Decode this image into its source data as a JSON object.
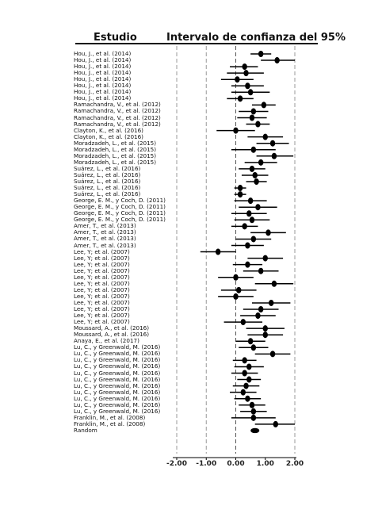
{
  "header": {
    "study": "Estudio",
    "ci": "Intervalo de confianza del 95%"
  },
  "chart_data": {
    "type": "forest",
    "xlim": [
      -2.0,
      2.0
    ],
    "xticks": [
      "-2.00",
      "-1.00",
      "0.00",
      "1.00",
      "2.00"
    ],
    "reference_lines": [
      -2.0,
      -1.0,
      0.0,
      2.0
    ],
    "studies": [
      {
        "label": "Hou, J., et al. (2014)",
        "est": 0.85,
        "lo": 0.5,
        "hi": 1.2
      },
      {
        "label": "Hou, J., et al. (2014)",
        "est": 1.4,
        "lo": 0.85,
        "hi": 2.0
      },
      {
        "label": "Hou, J., et al. (2014)",
        "est": 0.3,
        "lo": -0.2,
        "hi": 0.75
      },
      {
        "label": "Hou, J., et al. (2014)",
        "est": 0.35,
        "lo": -0.3,
        "hi": 0.95
      },
      {
        "label": "Hou, J., et al. (2014)",
        "est": 0.05,
        "lo": -0.5,
        "hi": 0.6
      },
      {
        "label": "Hou, J., et al. (2014)",
        "est": 0.4,
        "lo": -0.15,
        "hi": 0.95
      },
      {
        "label": "Hou, J., et al. (2014)",
        "est": 0.5,
        "lo": -0.15,
        "hi": 1.15
      },
      {
        "label": "Hou, J., et al. (2014)",
        "est": 0.15,
        "lo": -0.3,
        "hi": 0.6
      },
      {
        "label": "Ramachandra, V., et al. (2012)",
        "est": 0.95,
        "lo": 0.55,
        "hi": 1.35
      },
      {
        "label": "Ramachandra, V., et al. (2012)",
        "est": 0.6,
        "lo": 0.1,
        "hi": 1.1
      },
      {
        "label": "Ramachandra, V., et al. (2012)",
        "est": 0.55,
        "lo": 0.05,
        "hi": 1.05
      },
      {
        "label": "Ramachandra, V., et al. (2012)",
        "est": 0.75,
        "lo": 0.35,
        "hi": 1.15
      },
      {
        "label": "Clayton, K., et al. (2016)",
        "est": 0.0,
        "lo": -0.65,
        "hi": 0.65
      },
      {
        "label": "Clayton, K., et al. (2016)",
        "est": 1.0,
        "lo": 0.4,
        "hi": 1.6
      },
      {
        "label": "Moradzadeh, L., et al. (2015)",
        "est": 1.25,
        "lo": 0.7,
        "hi": 1.8
      },
      {
        "label": "Moradzadeh, L., et al. (2015)",
        "est": 0.6,
        "lo": -0.15,
        "hi": 1.35
      },
      {
        "label": "Moradzadeh, L., et al. (2015)",
        "est": 1.3,
        "lo": 0.7,
        "hi": 1.95
      },
      {
        "label": "Moradzadeh, L., et al. (2015)",
        "est": 0.85,
        "lo": 0.3,
        "hi": 1.4
      },
      {
        "label": "Suárez, L., et al. (2016)",
        "est": 0.55,
        "lo": 0.1,
        "hi": 1.0
      },
      {
        "label": "Suárez, L., et al. (2016)",
        "est": 0.65,
        "lo": 0.2,
        "hi": 1.1
      },
      {
        "label": "Suárez, L., et al. (2016)",
        "est": 0.7,
        "lo": 0.35,
        "hi": 1.05
      },
      {
        "label": "Suárez, L., et al. (2016)",
        "est": 0.15,
        "lo": -0.05,
        "hi": 0.35
      },
      {
        "label": "Suárez, L., et al. (2016)",
        "est": 0.15,
        "lo": -0.05,
        "hi": 0.35
      },
      {
        "label": "George, E. M., y Coch, D. (2011)",
        "est": 0.5,
        "lo": -0.05,
        "hi": 1.05
      },
      {
        "label": "George, E. M., y Coch, D. (2011)",
        "est": 0.75,
        "lo": 0.1,
        "hi": 1.4
      },
      {
        "label": "George, E. M., y Coch, D. (2011)",
        "est": 0.45,
        "lo": -0.15,
        "hi": 1.05
      },
      {
        "label": "George, E. M., y Coch, D. (2011)",
        "est": 0.55,
        "lo": -0.05,
        "hi": 1.15
      },
      {
        "label": "Amer, T., et al. (2013)",
        "est": 0.3,
        "lo": -0.15,
        "hi": 0.75
      },
      {
        "label": "Amer, T., et al. (2013)",
        "est": 1.1,
        "lo": 0.5,
        "hi": 1.7
      },
      {
        "label": "Amer, T., et al. (2013)",
        "est": 0.6,
        "lo": 0.0,
        "hi": 1.2
      },
      {
        "label": "Amer, T., et al. (2013)",
        "est": 0.4,
        "lo": -0.15,
        "hi": 0.95
      },
      {
        "label": "Lee, Y; et al.  (2007)",
        "est": -0.6,
        "lo": -1.2,
        "hi": 0.0
      },
      {
        "label": "Lee, Y; et al.  (2007)",
        "est": 1.0,
        "lo": 0.4,
        "hi": 1.6
      },
      {
        "label": "Lee, Y; et al.  (2007)",
        "est": 0.4,
        "lo": -0.1,
        "hi": 0.9
      },
      {
        "label": "Lee, Y; et al.  (2007)",
        "est": 0.85,
        "lo": 0.25,
        "hi": 1.45
      },
      {
        "label": "Lee, Y; et al.  (2007)",
        "est": 0.0,
        "lo": -0.6,
        "hi": 0.6
      },
      {
        "label": "Lee, Y; et al.  (2007)",
        "est": 1.3,
        "lo": 0.65,
        "hi": 1.95
      },
      {
        "label": "Lee, Y; et al.  (2007)",
        "est": 0.1,
        "lo": -0.5,
        "hi": 0.7
      },
      {
        "label": "Lee, Y; et al.  (2007)",
        "est": 0.0,
        "lo": -0.6,
        "hi": 0.6
      },
      {
        "label": "Lee, Y; et al.  (2007)",
        "est": 1.2,
        "lo": 0.55,
        "hi": 1.85
      },
      {
        "label": "Lee, Y; et al.  (2007)",
        "est": 0.85,
        "lo": 0.25,
        "hi": 1.45
      },
      {
        "label": "Lee, Y; et al.  (2007)",
        "est": 0.75,
        "lo": 0.15,
        "hi": 1.35
      },
      {
        "label": "Lee, Y; et al.  (2007)",
        "est": 0.25,
        "lo": -0.4,
        "hi": 0.9
      },
      {
        "label": "Moussard, A., et al. (2016)",
        "est": 1.0,
        "lo": 0.35,
        "hi": 1.65
      },
      {
        "label": "Moussard, A., et al. (2016)",
        "est": 1.0,
        "lo": 0.4,
        "hi": 1.6
      },
      {
        "label": "Anaya, E., et al. (2017)",
        "est": 0.5,
        "lo": 0.0,
        "hi": 1.0
      },
      {
        "label": "Lu, C., y Greenwald, M. (2016)",
        "est": 0.6,
        "lo": 0.1,
        "hi": 1.1
      },
      {
        "label": "Lu, C., y Greenwald, M. (2016)",
        "est": 1.25,
        "lo": 0.65,
        "hi": 1.85
      },
      {
        "label": "Lu, C., y Greenwald, M. (2016)",
        "est": 0.3,
        "lo": -0.1,
        "hi": 0.7
      },
      {
        "label": "Lu, C., y Greenwald, M. (2016)",
        "est": 0.45,
        "lo": -0.05,
        "hi": 0.95
      },
      {
        "label": "Lu, C., y Greenwald, M. (2016)",
        "est": 0.3,
        "lo": -0.15,
        "hi": 0.75
      },
      {
        "label": "Lu, C., y Greenwald, M. (2016)",
        "est": 0.45,
        "lo": 0.05,
        "hi": 0.85
      },
      {
        "label": "Lu, C., y Greenwald, M. (2016)",
        "est": 0.35,
        "lo": -0.1,
        "hi": 0.8
      },
      {
        "label": "Lu, C., y Greenwald, M. (2016)",
        "est": 0.25,
        "lo": -0.2,
        "hi": 0.7
      },
      {
        "label": "Lu, C., y Greenwald, M. (2016)",
        "est": 0.4,
        "lo": -0.05,
        "hi": 0.85
      },
      {
        "label": "Lu, C., y Greenwald, M. (2016)",
        "est": 0.55,
        "lo": 0.1,
        "hi": 1.0
      },
      {
        "label": "Lu, C., y Greenwald, M. (2016)",
        "est": 0.6,
        "lo": 0.15,
        "hi": 1.05
      },
      {
        "label": "Franklin, M., et al. (2008)",
        "est": 0.6,
        "lo": -0.15,
        "hi": 1.35
      },
      {
        "label": "Franklin, M., et al. (2008)",
        "est": 1.35,
        "lo": 0.65,
        "hi": 2.0
      }
    ],
    "pooled": {
      "label": "Random",
      "est": 0.65,
      "lo": 0.5,
      "hi": 0.8
    }
  }
}
